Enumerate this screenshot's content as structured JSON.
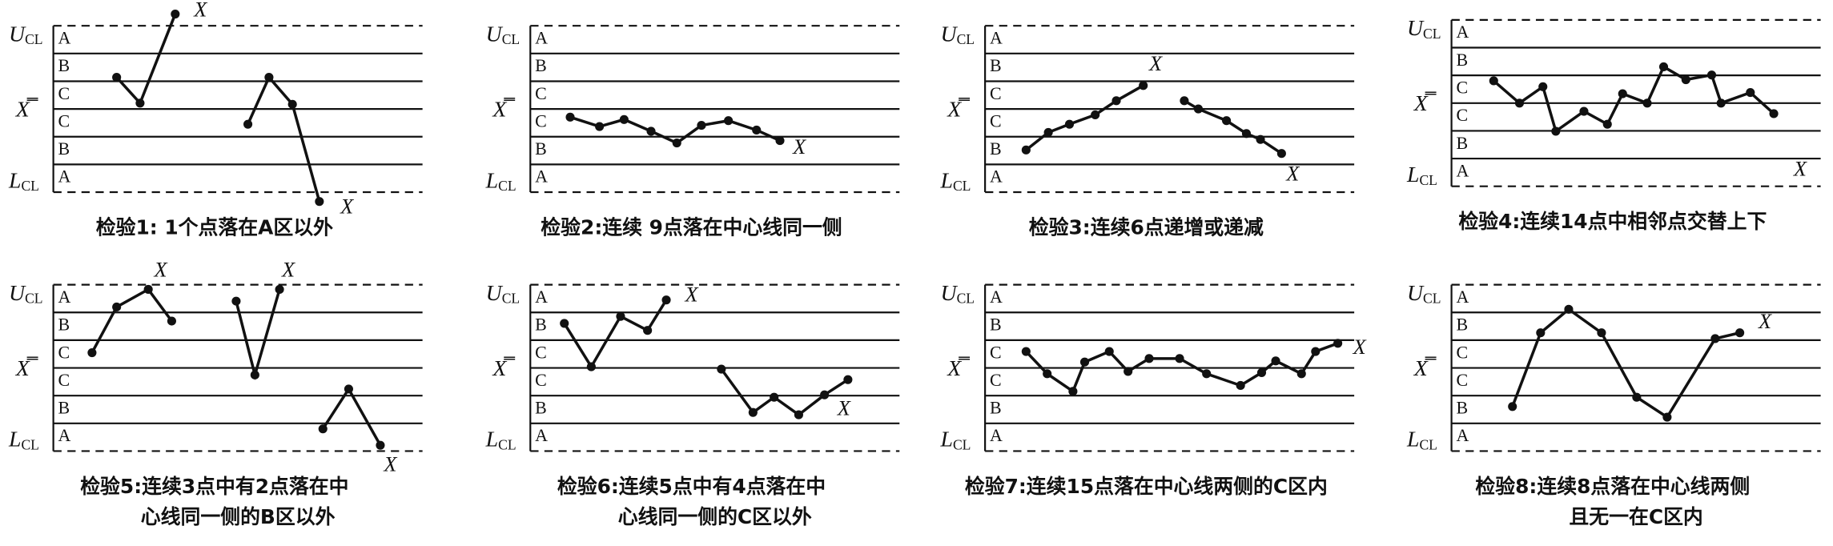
{
  "axis_labels": {
    "ucl": "U",
    "ucl_sub": "CL",
    "center": "X̿",
    "lcl": "L",
    "lcl_sub": "CL"
  },
  "zones": [
    "A",
    "B",
    "C",
    "C",
    "B",
    "A"
  ],
  "marker": "X",
  "panels": [
    {
      "caption": [
        "检验1: 1个点落在A区以外"
      ]
    },
    {
      "caption": [
        "检验2:连续 9点落在中心线同一侧"
      ]
    },
    {
      "caption": [
        "检验3:连续6点递增或递减"
      ]
    },
    {
      "caption": [
        "检验4:连续14点中相邻点交替上下"
      ]
    },
    {
      "caption": [
        "检验5:连续3点中有2点落在中",
        "心线同一侧的B区以外"
      ]
    },
    {
      "caption": [
        "检验6:连续5点中有4点落在中",
        "心线同一侧的C区以外"
      ]
    },
    {
      "caption": [
        "检验7:连续15点落在中心线两侧的C区内"
      ]
    },
    {
      "caption": [
        "检验8:连续8点落在中心线两侧",
        "且无一在C区内"
      ]
    }
  ]
}
